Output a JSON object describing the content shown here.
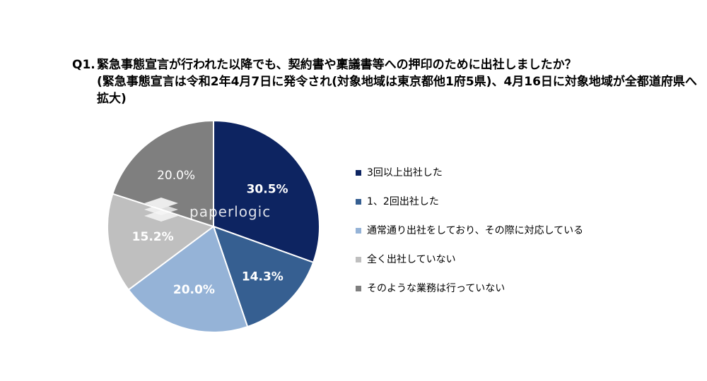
{
  "title": {
    "number": "Q1.",
    "line1": "緊急事態宣言が行われた以降でも、契約書や稟議書等への押印のために出社しましたか？",
    "line2": "(緊急事態宣言は令和2年4月7日に発令され(対象地域は東京都他1府5県)、4月16日に対象地域が全都道府県へ拡大)"
  },
  "watermark": {
    "text": "paperlogic"
  },
  "chart_data": {
    "type": "pie",
    "title": "",
    "start_angle_deg": 0,
    "direction": "clockwise",
    "labels_format": "{value}%",
    "legend_position": "right",
    "slices": [
      {
        "label": "3回以上出社した",
        "value": 30.5,
        "display": "30.5%",
        "color": "#0d2461"
      },
      {
        "label": "1、2回出社した",
        "value": 14.3,
        "display": "14.3%",
        "color": "#365f91"
      },
      {
        "label": "通常通り出社をしており、その際に対応している",
        "value": 20.0,
        "display": "20.0%",
        "color": "#95b3d7"
      },
      {
        "label": "全く出社していない",
        "value": 15.2,
        "display": "15.2%",
        "color": "#bfbfbf"
      },
      {
        "label": "そのような業務は行っていない",
        "value": 20.0,
        "display": "20.0%",
        "color": "#7f7f7f"
      }
    ]
  }
}
